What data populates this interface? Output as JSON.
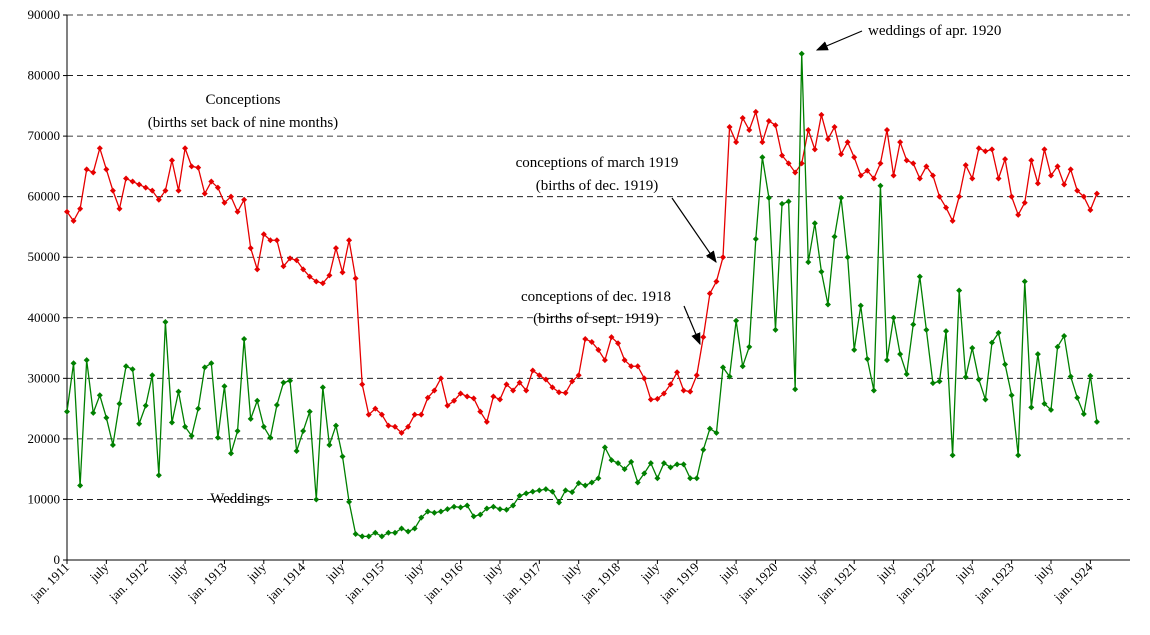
{
  "chart_data": {
    "type": "line",
    "ylim": [
      0,
      90000
    ],
    "yticks": [
      0,
      10000,
      20000,
      30000,
      40000,
      50000,
      60000,
      70000,
      80000,
      90000
    ],
    "grid": true,
    "categories": [
      "jan. 1911",
      null,
      null,
      null,
      null,
      null,
      "july",
      null,
      null,
      null,
      null,
      null,
      "jan. 1912",
      null,
      null,
      null,
      null,
      null,
      "july",
      null,
      null,
      null,
      null,
      null,
      "jan. 1913",
      null,
      null,
      null,
      null,
      null,
      "july",
      null,
      null,
      null,
      null,
      null,
      "jan. 1914",
      null,
      null,
      null,
      null,
      null,
      "july",
      null,
      null,
      null,
      null,
      null,
      "jan. 1915",
      null,
      null,
      null,
      null,
      null,
      "july",
      null,
      null,
      null,
      null,
      null,
      "jan. 1916",
      null,
      null,
      null,
      null,
      null,
      "july",
      null,
      null,
      null,
      null,
      null,
      "jan. 1917",
      null,
      null,
      null,
      null,
      null,
      "july",
      null,
      null,
      null,
      null,
      null,
      "jan. 1918",
      null,
      null,
      null,
      null,
      null,
      "july",
      null,
      null,
      null,
      null,
      null,
      "jan. 1919",
      null,
      null,
      null,
      null,
      null,
      "july",
      null,
      null,
      null,
      null,
      null,
      "jan. 1920",
      null,
      null,
      null,
      null,
      null,
      "july",
      null,
      null,
      null,
      null,
      null,
      "jan. 1921",
      null,
      null,
      null,
      null,
      null,
      "july",
      null,
      null,
      null,
      null,
      null,
      "jan. 1922",
      null,
      null,
      null,
      null,
      null,
      "july",
      null,
      null,
      null,
      null,
      null,
      "jan. 1923",
      null,
      null,
      null,
      null,
      null,
      "july",
      null,
      null,
      null,
      null,
      null,
      "jan. 1924",
      null
    ],
    "series": [
      {
        "color": "#e60000",
        "values": [
          57500,
          56000,
          58000,
          64500,
          64000,
          68000,
          64500,
          61000,
          58000,
          63000,
          62500,
          62000,
          61500,
          61000,
          59500,
          61000,
          66000,
          61000,
          68000,
          65000,
          64800,
          60500,
          62500,
          61500,
          59000,
          60000,
          57500,
          59500,
          51500,
          48000,
          53800,
          52800,
          52800,
          48500,
          49800,
          49500,
          48000,
          46800,
          46000,
          45700,
          47000,
          51500,
          47500,
          52800,
          46500,
          29000,
          24000,
          25000,
          24000,
          22200,
          22000,
          21000,
          22000,
          24000,
          24000,
          26800,
          28000,
          30000,
          25500,
          26300,
          27500,
          27000,
          26700,
          24500,
          22800,
          27000,
          26500,
          29000,
          28000,
          29300,
          28000,
          31300,
          30500,
          29800,
          28500,
          27700,
          27600,
          29500,
          30500,
          36500,
          36000,
          34700,
          33000,
          36800,
          35800,
          33000,
          32000,
          32000,
          30000,
          26500,
          26600,
          27500,
          29000,
          31000,
          28000,
          27800,
          30500,
          36800,
          44000,
          46000,
          50000,
          71500,
          69000,
          73000,
          71000,
          74000,
          69000,
          72500,
          71800,
          66800,
          65500,
          64000,
          65500,
          71000,
          67800,
          73500,
          69500,
          71500,
          67000,
          69000,
          66500,
          63500,
          64300,
          63000,
          65500,
          71000,
          63500,
          69000,
          66000,
          65500,
          63000,
          65000,
          63500,
          60000,
          58200,
          56000,
          60000,
          65200,
          63000,
          68000,
          67500,
          67800,
          63000,
          66200,
          60000,
          57000,
          59000,
          66000,
          62200,
          67800,
          63500,
          65000,
          62000,
          64500,
          61000,
          60000,
          57800,
          60500
        ]
      },
      {
        "color": "#008000",
        "values": [
          24500,
          32500,
          12300,
          33000,
          24300,
          27200,
          23500,
          19000,
          25800,
          32000,
          31500,
          22500,
          25500,
          30500,
          14000,
          39300,
          22700,
          27800,
          22000,
          20500,
          25000,
          31800,
          32500,
          20200,
          28700,
          17600,
          21300,
          36500,
          23300,
          26300,
          22000,
          20200,
          25600,
          29300,
          29600,
          18000,
          21300,
          24500,
          10000,
          28500,
          19000,
          22200,
          17100,
          9600,
          4300,
          3900,
          3900,
          4500,
          3900,
          4500,
          4500,
          5200,
          4700,
          5200,
          7000,
          8000,
          7800,
          8000,
          8400,
          8800,
          8700,
          9000,
          7200,
          7500,
          8500,
          8800,
          8400,
          8300,
          9000,
          10600,
          11000,
          11300,
          11500,
          11700,
          11300,
          9500,
          11500,
          11200,
          12700,
          12300,
          12800,
          13500,
          18600,
          16500,
          16000,
          15000,
          16200,
          12800,
          14300,
          16000,
          13500,
          16000,
          15300,
          15800,
          15800,
          13500,
          13500,
          18200,
          21700,
          21000,
          31800,
          30300,
          39500,
          32000,
          35200,
          53000,
          66500,
          59800,
          38000,
          58800,
          59200,
          28200,
          83600,
          49200,
          55600,
          47600,
          42200,
          53400,
          59800,
          50000,
          34700,
          42000,
          33200,
          28000,
          61800,
          33000,
          40000,
          34000,
          30700,
          38900,
          46800,
          38000,
          29200,
          29500,
          37800,
          17300,
          44500,
          30200,
          35000,
          29800,
          26500,
          35900,
          37500,
          32300,
          27200,
          17300,
          46000,
          25200,
          34000,
          25800,
          24800,
          35200,
          37000,
          30300,
          26800,
          24100,
          30400,
          22800
        ]
      }
    ],
    "annotations": [
      {
        "text": "Conceptions"
      },
      {
        "text": "(births set back of nine months)"
      },
      {
        "text": "weddings of apr. 1920"
      },
      {
        "text": "conceptions of march 1919"
      },
      {
        "text": "(births of dec. 1919)"
      },
      {
        "text": "conceptions of dec. 1918"
      },
      {
        "text": "(births of sept. 1919)"
      },
      {
        "text": "Weddings"
      }
    ]
  }
}
